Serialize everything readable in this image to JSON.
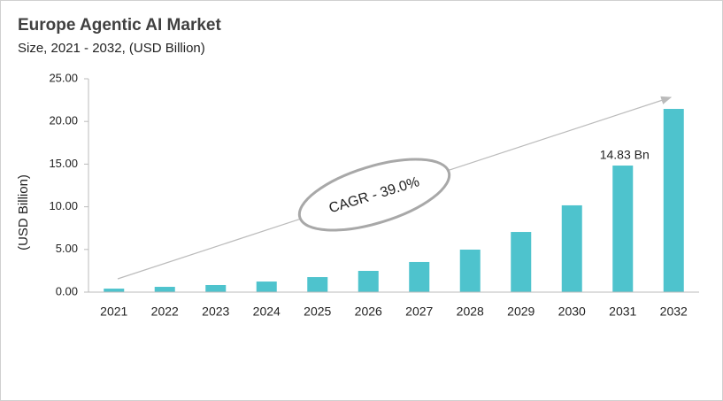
{
  "chart_data": {
    "type": "bar",
    "title": "Europe Agentic AI Market",
    "subtitle": "Size, 2021 - 2032, (USD Billion)",
    "y_label": "(USD Billion)",
    "annotation": "CAGR - 39.0%",
    "categories": [
      "2021",
      "2022",
      "2023",
      "2024",
      "2025",
      "2026",
      "2027",
      "2028",
      "2029",
      "2030",
      "2031",
      "2032"
    ],
    "values": [
      0.41,
      0.62,
      0.83,
      1.24,
      1.76,
      2.49,
      3.53,
      4.98,
      7.05,
      10.17,
      14.83,
      21.47
    ],
    "value_labels": [
      null,
      null,
      null,
      null,
      null,
      null,
      null,
      null,
      null,
      null,
      "14.83 Bn",
      null
    ],
    "color": "#4ec3cd",
    "ylim": [
      0,
      25
    ],
    "yticks": [
      {
        "value": 0,
        "label": "0.00"
      },
      {
        "value": 5,
        "label": "5.00"
      },
      {
        "value": 10,
        "label": "10.00"
      },
      {
        "value": 15,
        "label": "15.00"
      },
      {
        "value": 20,
        "label": "20.00"
      },
      {
        "value": 25,
        "label": "25.00"
      }
    ]
  }
}
